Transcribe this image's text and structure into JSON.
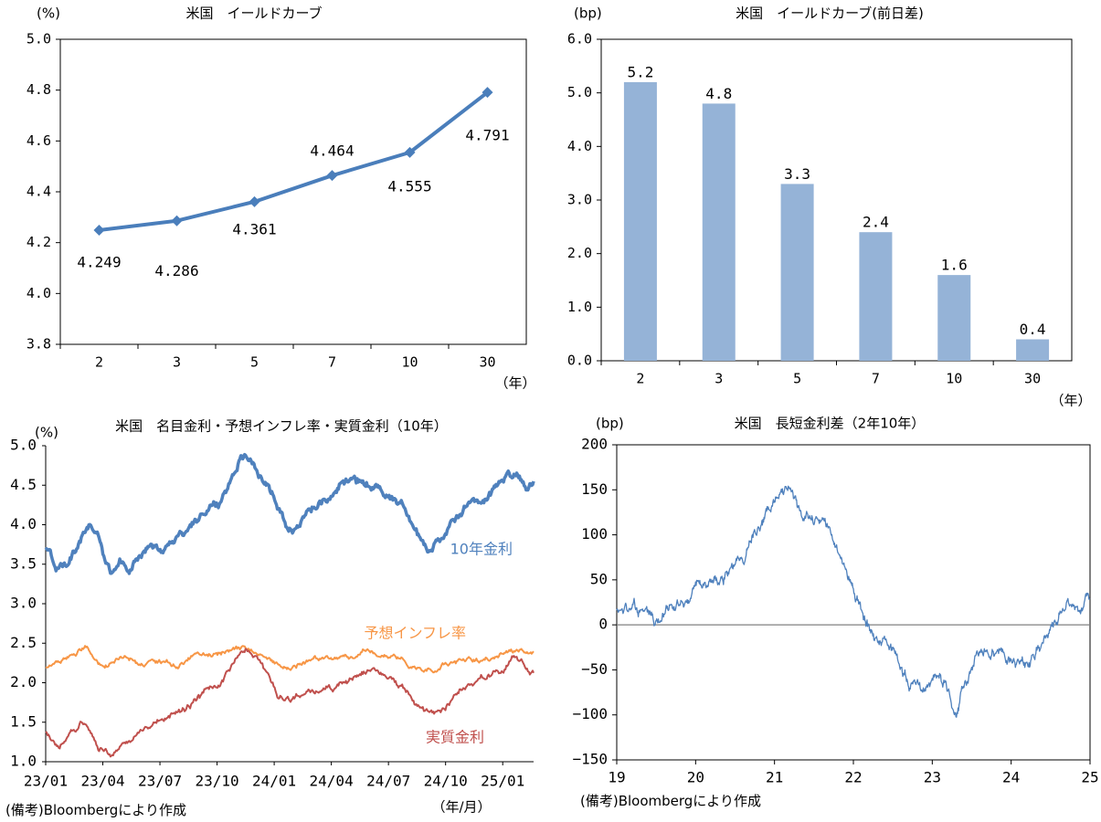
{
  "chart_data": [
    {
      "id": "yield_curve",
      "type": "line",
      "title": "米国　イールドカーブ",
      "yunit": "(%)",
      "xunit": "（年）",
      "categories": [
        "2",
        "3",
        "5",
        "7",
        "10",
        "30"
      ],
      "values": [
        4.249,
        4.286,
        4.361,
        4.464,
        4.555,
        4.791
      ],
      "data_labels": [
        "4.249",
        "4.286",
        "4.361",
        "4.464",
        "4.555",
        "4.791"
      ],
      "ylim": [
        3.8,
        5.0
      ],
      "yticks": [
        "3.8",
        "4.0",
        "4.2",
        "4.4",
        "4.6",
        "4.8",
        "5.0"
      ],
      "grid": false,
      "colors": {
        "line": "#4a7ebb"
      }
    },
    {
      "id": "yield_curve_change",
      "type": "bar",
      "title": "米国　イールドカーブ(前日差)",
      "yunit": "(bp)",
      "xunit": "（年）",
      "categories": [
        "2",
        "3",
        "5",
        "7",
        "10",
        "30"
      ],
      "values": [
        5.2,
        4.8,
        3.3,
        2.4,
        1.6,
        0.4
      ],
      "data_labels": [
        "5.2",
        "4.8",
        "3.3",
        "2.4",
        "1.6",
        "0.4"
      ],
      "ylim": [
        0,
        6
      ],
      "yticks": [
        "0.0",
        "1.0",
        "2.0",
        "3.0",
        "4.0",
        "5.0",
        "6.0"
      ],
      "grid": false,
      "colors": {
        "bar": "#95b3d7"
      }
    },
    {
      "id": "nominal_inflation_real",
      "type": "line",
      "title": "米国　名目金利・予想インフレ率・実質金利（10年）",
      "yunit": "(%)",
      "xunit": "（年/月）",
      "x_ticks": [
        "23/01",
        "23/04",
        "23/07",
        "23/10",
        "24/01",
        "24/04",
        "24/07",
        "24/10",
        "25/01"
      ],
      "ylim": [
        1.0,
        5.0
      ],
      "yticks": [
        "1.0",
        "1.5",
        "2.0",
        "2.5",
        "3.0",
        "3.5",
        "4.0",
        "4.5",
        "5.0"
      ],
      "grid": false,
      "series": [
        {
          "name": "10年金利",
          "color": "#4f81bd",
          "anchors": [
            [
              0,
              3.7
            ],
            [
              0.35,
              3.45
            ],
            [
              1.0,
              3.7
            ],
            [
              1.4,
              3.95
            ],
            [
              1.7,
              3.9
            ],
            [
              1.9,
              3.6
            ],
            [
              2.1,
              3.4
            ],
            [
              2.4,
              3.55
            ],
            [
              2.7,
              3.45
            ],
            [
              3.0,
              3.6
            ],
            [
              3.4,
              3.75
            ],
            [
              3.7,
              3.65
            ],
            [
              4.1,
              3.8
            ],
            [
              4.5,
              3.9
            ],
            [
              4.8,
              4.05
            ],
            [
              5.2,
              4.2
            ],
            [
              5.6,
              4.3
            ],
            [
              6.0,
              4.55
            ],
            [
              6.3,
              4.85
            ],
            [
              6.6,
              4.9
            ],
            [
              7.0,
              4.6
            ],
            [
              7.4,
              4.35
            ],
            [
              7.7,
              4.1
            ],
            [
              8.0,
              3.95
            ],
            [
              8.3,
              4.1
            ],
            [
              8.7,
              4.2
            ],
            [
              9.2,
              4.3
            ],
            [
              9.6,
              4.55
            ],
            [
              10.0,
              4.6
            ],
            [
              10.4,
              4.5
            ],
            [
              10.8,
              4.45
            ],
            [
              11.2,
              4.35
            ],
            [
              11.6,
              4.25
            ],
            [
              12.0,
              3.9
            ],
            [
              12.4,
              3.7
            ],
            [
              12.8,
              3.8
            ],
            [
              13.2,
              4.05
            ],
            [
              13.6,
              4.25
            ],
            [
              14.2,
              4.3
            ],
            [
              14.6,
              4.5
            ],
            [
              15.0,
              4.6
            ],
            [
              15.3,
              4.65
            ],
            [
              15.6,
              4.5
            ],
            [
              15.8,
              4.55
            ]
          ],
          "amp": 0.045
        },
        {
          "name": "予想インフレ率",
          "color": "#f79646",
          "anchors": [
            [
              0,
              2.2
            ],
            [
              0.7,
              2.28
            ],
            [
              1.3,
              2.45
            ],
            [
              1.8,
              2.2
            ],
            [
              2.4,
              2.32
            ],
            [
              3.0,
              2.22
            ],
            [
              3.6,
              2.28
            ],
            [
              4.2,
              2.2
            ],
            [
              4.8,
              2.3
            ],
            [
              5.4,
              2.35
            ],
            [
              6.0,
              2.42
            ],
            [
              6.6,
              2.45
            ],
            [
              7.0,
              2.38
            ],
            [
              7.4,
              2.25
            ],
            [
              7.8,
              2.2
            ],
            [
              8.2,
              2.25
            ],
            [
              8.7,
              2.3
            ],
            [
              9.2,
              2.32
            ],
            [
              9.8,
              2.35
            ],
            [
              10.4,
              2.4
            ],
            [
              11.0,
              2.35
            ],
            [
              11.5,
              2.32
            ],
            [
              12.0,
              2.2
            ],
            [
              12.6,
              2.18
            ],
            [
              13.0,
              2.25
            ],
            [
              13.6,
              2.25
            ],
            [
              14.2,
              2.3
            ],
            [
              14.8,
              2.35
            ],
            [
              15.3,
              2.42
            ],
            [
              15.8,
              2.42
            ]
          ],
          "amp": 0.025
        },
        {
          "name": "実質金利",
          "color": "#c0504d",
          "anchors": [
            [
              0,
              1.4
            ],
            [
              0.4,
              1.15
            ],
            [
              0.8,
              1.35
            ],
            [
              1.3,
              1.5
            ],
            [
              1.7,
              1.2
            ],
            [
              2.1,
              1.12
            ],
            [
              2.6,
              1.25
            ],
            [
              3.0,
              1.35
            ],
            [
              3.6,
              1.5
            ],
            [
              4.2,
              1.6
            ],
            [
              4.8,
              1.8
            ],
            [
              5.3,
              1.9
            ],
            [
              5.8,
              2.05
            ],
            [
              6.2,
              2.3
            ],
            [
              6.6,
              2.45
            ],
            [
              6.9,
              2.3
            ],
            [
              7.2,
              2.1
            ],
            [
              7.5,
              1.8
            ],
            [
              7.9,
              1.75
            ],
            [
              8.3,
              1.85
            ],
            [
              8.8,
              1.85
            ],
            [
              9.3,
              1.9
            ],
            [
              9.7,
              2.05
            ],
            [
              10.2,
              2.15
            ],
            [
              10.7,
              2.15
            ],
            [
              11.2,
              2.05
            ],
            [
              11.6,
              1.9
            ],
            [
              12.0,
              1.72
            ],
            [
              12.4,
              1.6
            ],
            [
              12.8,
              1.72
            ],
            [
              13.3,
              1.85
            ],
            [
              13.8,
              2.0
            ],
            [
              14.3,
              2.1
            ],
            [
              14.8,
              2.2
            ],
            [
              15.2,
              2.3
            ],
            [
              15.5,
              2.2
            ],
            [
              15.8,
              2.12
            ]
          ],
          "amp": 0.035
        }
      ]
    },
    {
      "id": "term_spread",
      "type": "line",
      "title": "米国　長短金利差（2年10年）",
      "yunit": "(bp)",
      "x_ticks": [
        "19",
        "20",
        "21",
        "22",
        "23",
        "24",
        "25"
      ],
      "ylim": [
        -150,
        200
      ],
      "yticks": [
        "−150",
        "−100",
        "−50",
        "0",
        "50",
        "100",
        "150",
        "200"
      ],
      "grid": false,
      "series": [
        {
          "name": "",
          "color": "#4f81bd",
          "anchors": [
            [
              0,
              15
            ],
            [
              0.3,
              18
            ],
            [
              0.6,
              22
            ],
            [
              0.8,
              10
            ],
            [
              0.9,
              2
            ],
            [
              1.0,
              5
            ],
            [
              1.2,
              14
            ],
            [
              1.4,
              22
            ],
            [
              1.6,
              30
            ],
            [
              1.9,
              42
            ],
            [
              2.2,
              50
            ],
            [
              2.5,
              58
            ],
            [
              2.8,
              70
            ],
            [
              3.1,
              90
            ],
            [
              3.3,
              108
            ],
            [
              3.5,
              125
            ],
            [
              3.7,
              145
            ],
            [
              3.9,
              152
            ],
            [
              4.1,
              138
            ],
            [
              4.3,
              118
            ],
            [
              4.5,
              110
            ],
            [
              4.7,
              122
            ],
            [
              4.9,
              108
            ],
            [
              5.1,
              90
            ],
            [
              5.3,
              65
            ],
            [
              5.5,
              40
            ],
            [
              5.7,
              15
            ],
            [
              5.9,
              -2
            ],
            [
              6.1,
              -18
            ],
            [
              6.3,
              -28
            ],
            [
              6.5,
              -40
            ],
            [
              6.7,
              -55
            ],
            [
              6.9,
              -68
            ],
            [
              7.1,
              -78
            ],
            [
              7.3,
              -62
            ],
            [
              7.5,
              -55
            ],
            [
              7.7,
              -75
            ],
            [
              7.9,
              -100
            ],
            [
              8.0,
              -80
            ],
            [
              8.2,
              -55
            ],
            [
              8.4,
              -40
            ],
            [
              8.6,
              -25
            ],
            [
              8.8,
              -30
            ],
            [
              9.0,
              -40
            ],
            [
              9.2,
              -35
            ],
            [
              9.4,
              -38
            ],
            [
              9.6,
              -42
            ],
            [
              9.8,
              -30
            ],
            [
              10.0,
              -15
            ],
            [
              10.2,
              5
            ],
            [
              10.4,
              18
            ],
            [
              10.6,
              20
            ],
            [
              10.8,
              15
            ],
            [
              10.9,
              30
            ],
            [
              11.0,
              30
            ]
          ],
          "amp": 3.5
        }
      ]
    }
  ],
  "notes": {
    "left": "(備考)Bloombergにより作成",
    "right": "(備考)Bloombergにより作成"
  }
}
